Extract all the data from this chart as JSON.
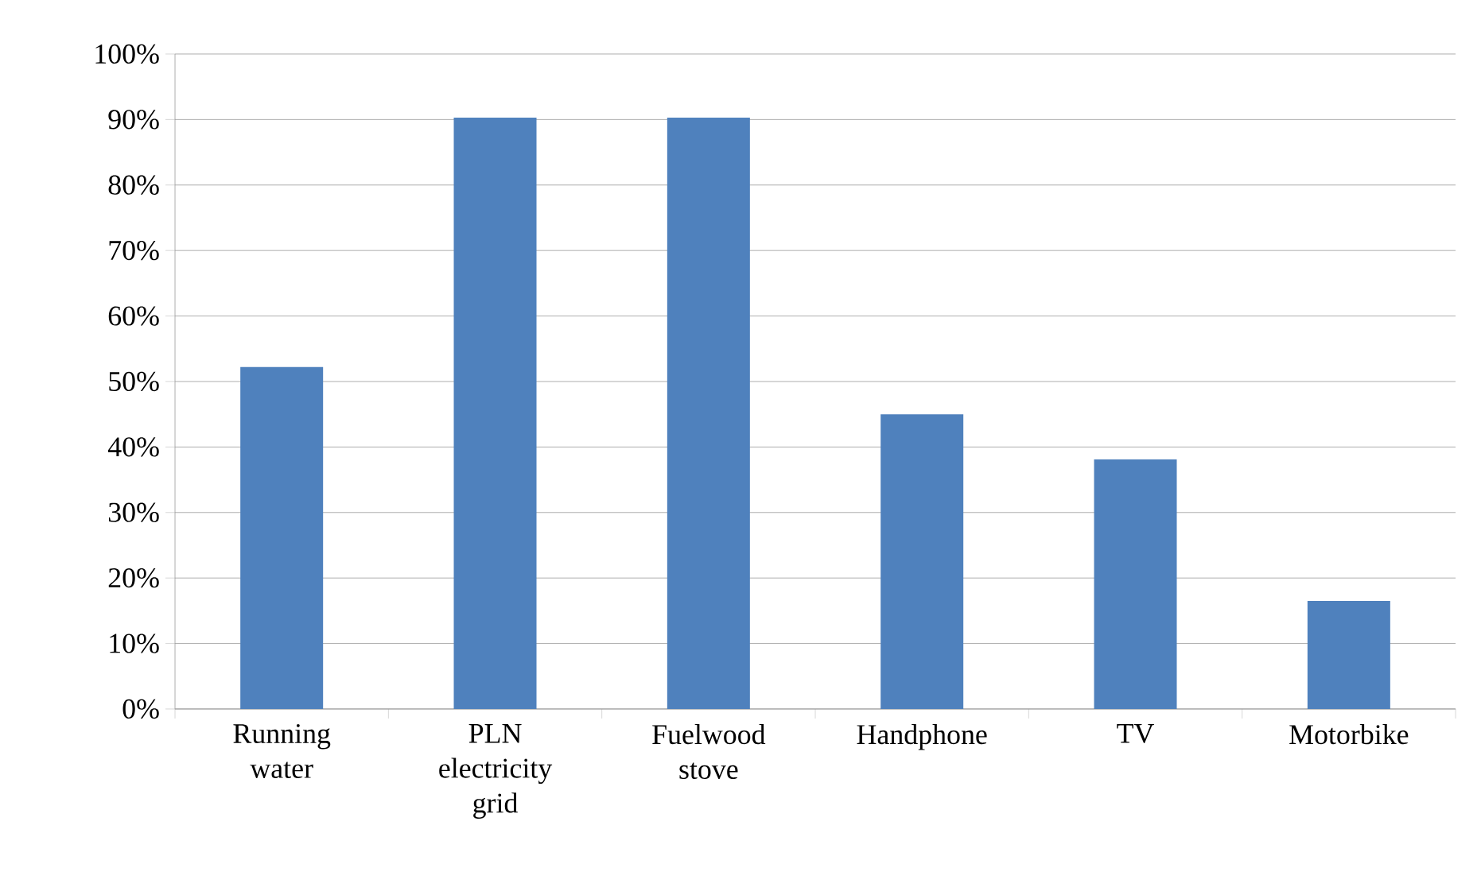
{
  "chart_data": {
    "type": "bar",
    "categories": [
      "Running water",
      "PLN electricity grid",
      "Fuelwood stove",
      "Handphone",
      "TV",
      "Motorbike"
    ],
    "values": [
      52.2,
      90.3,
      90.3,
      45,
      38.1,
      16.5
    ],
    "color": "#4f81bd",
    "ylim": [
      0,
      100
    ],
    "yticks": [
      {
        "value": 0,
        "label": "0%"
      },
      {
        "value": 10,
        "label": "10%"
      },
      {
        "value": 20,
        "label": "20%"
      },
      {
        "value": 30,
        "label": "30%"
      },
      {
        "value": 40,
        "label": "40%"
      },
      {
        "value": 50,
        "label": "50%"
      },
      {
        "value": 60,
        "label": "60%"
      },
      {
        "value": 70,
        "label": "70%"
      },
      {
        "value": 80,
        "label": "80%"
      },
      {
        "value": 90,
        "label": "90%"
      },
      {
        "value": 100,
        "label": "100%"
      }
    ],
    "grid": "y"
  }
}
